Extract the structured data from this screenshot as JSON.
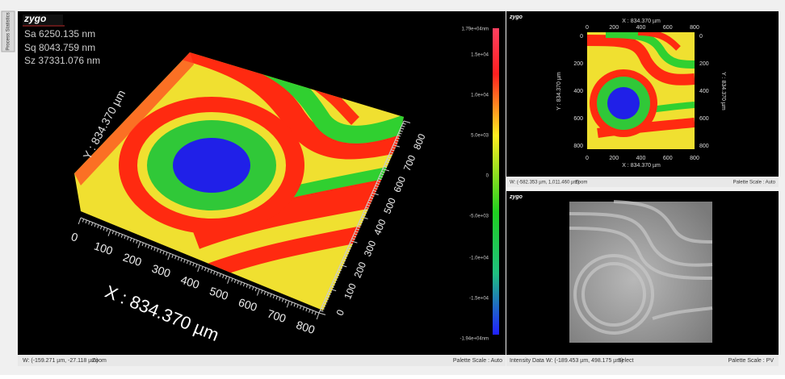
{
  "side_tab": "Process Statistics",
  "main_view": {
    "logo": "zygo",
    "stats": [
      "Sa 6250.135  nm",
      "Sq 8043.759  nm",
      "Sz 37331.076 nm"
    ],
    "x_axis_title": "X : 834.370 µm",
    "y_axis_title": "Y : 834.370 µm",
    "x_ticks": [
      "0",
      "100",
      "200",
      "300",
      "400",
      "500",
      "600",
      "700",
      "800"
    ],
    "y_ticks": [
      "0",
      "100",
      "200",
      "300",
      "400",
      "500",
      "600",
      "700",
      "800"
    ],
    "colorbar_labels": [
      "1.79e+04nm",
      "1.5e+04",
      "1.0e+04",
      "5.0e+03",
      "0",
      "-5.0e+03",
      "-1.0e+04",
      "-1.5e+04",
      "-1.94e+04nm"
    ],
    "status": {
      "cursor": "W: (-159.271 µm, -27.118 µm)",
      "mode": "Zoom",
      "palette": "Palette Scale : Auto"
    }
  },
  "top_view": {
    "logo": "zygo",
    "x_title_top": "X : 834.370 µm",
    "x_title_bottom": "X : 834.370 µm",
    "y_title_left": "Y : 834.370 µm",
    "y_title_right": "Y : 834.370 µm",
    "x_ticks_top": [
      "0",
      "200",
      "400",
      "600",
      "800"
    ],
    "x_ticks_bottom": [
      "0",
      "200",
      "400",
      "600",
      "800"
    ],
    "y_ticks_left": [
      "0",
      "200",
      "400",
      "600",
      "800"
    ],
    "y_ticks_right": [
      "0",
      "200",
      "400",
      "600",
      "800"
    ],
    "status": {
      "cursor": "W: (-582.353 µm, 1,011.460 µm)",
      "mode": "Zoom",
      "palette": "Palette Scale : Auto"
    }
  },
  "intensity_view": {
    "logo": "zygo",
    "status": {
      "label": "Intensity Data",
      "cursor": "W: (-189.453 µm, 498.175 µm)",
      "mode": "Select",
      "palette": "Palette Scale : PV"
    }
  }
}
